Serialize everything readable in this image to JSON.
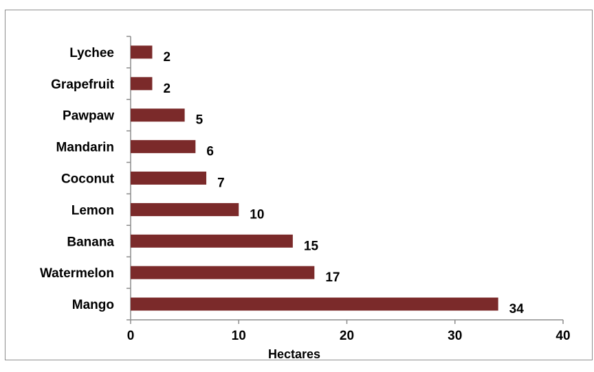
{
  "chart_data": {
    "type": "bar",
    "orientation": "horizontal",
    "categories": [
      "Lychee",
      "Grapefruit",
      "Pawpaw",
      "Mandarin",
      "Coconut",
      "Lemon",
      "Banana",
      "Watermelon",
      "Mango"
    ],
    "values": [
      2,
      2,
      5,
      6,
      7,
      10,
      15,
      17,
      34
    ],
    "data_labels": [
      "2",
      "2",
      "5",
      "6",
      "7",
      "10",
      "15",
      "17",
      "34"
    ],
    "title": "",
    "xlabel": "Hectares",
    "ylabel": "",
    "xlim": [
      0,
      40
    ],
    "x_ticks": [
      "0",
      "10",
      "20",
      "30",
      "40"
    ],
    "bar_color": "#7b2a2a",
    "grid": false,
    "legend": "none"
  }
}
